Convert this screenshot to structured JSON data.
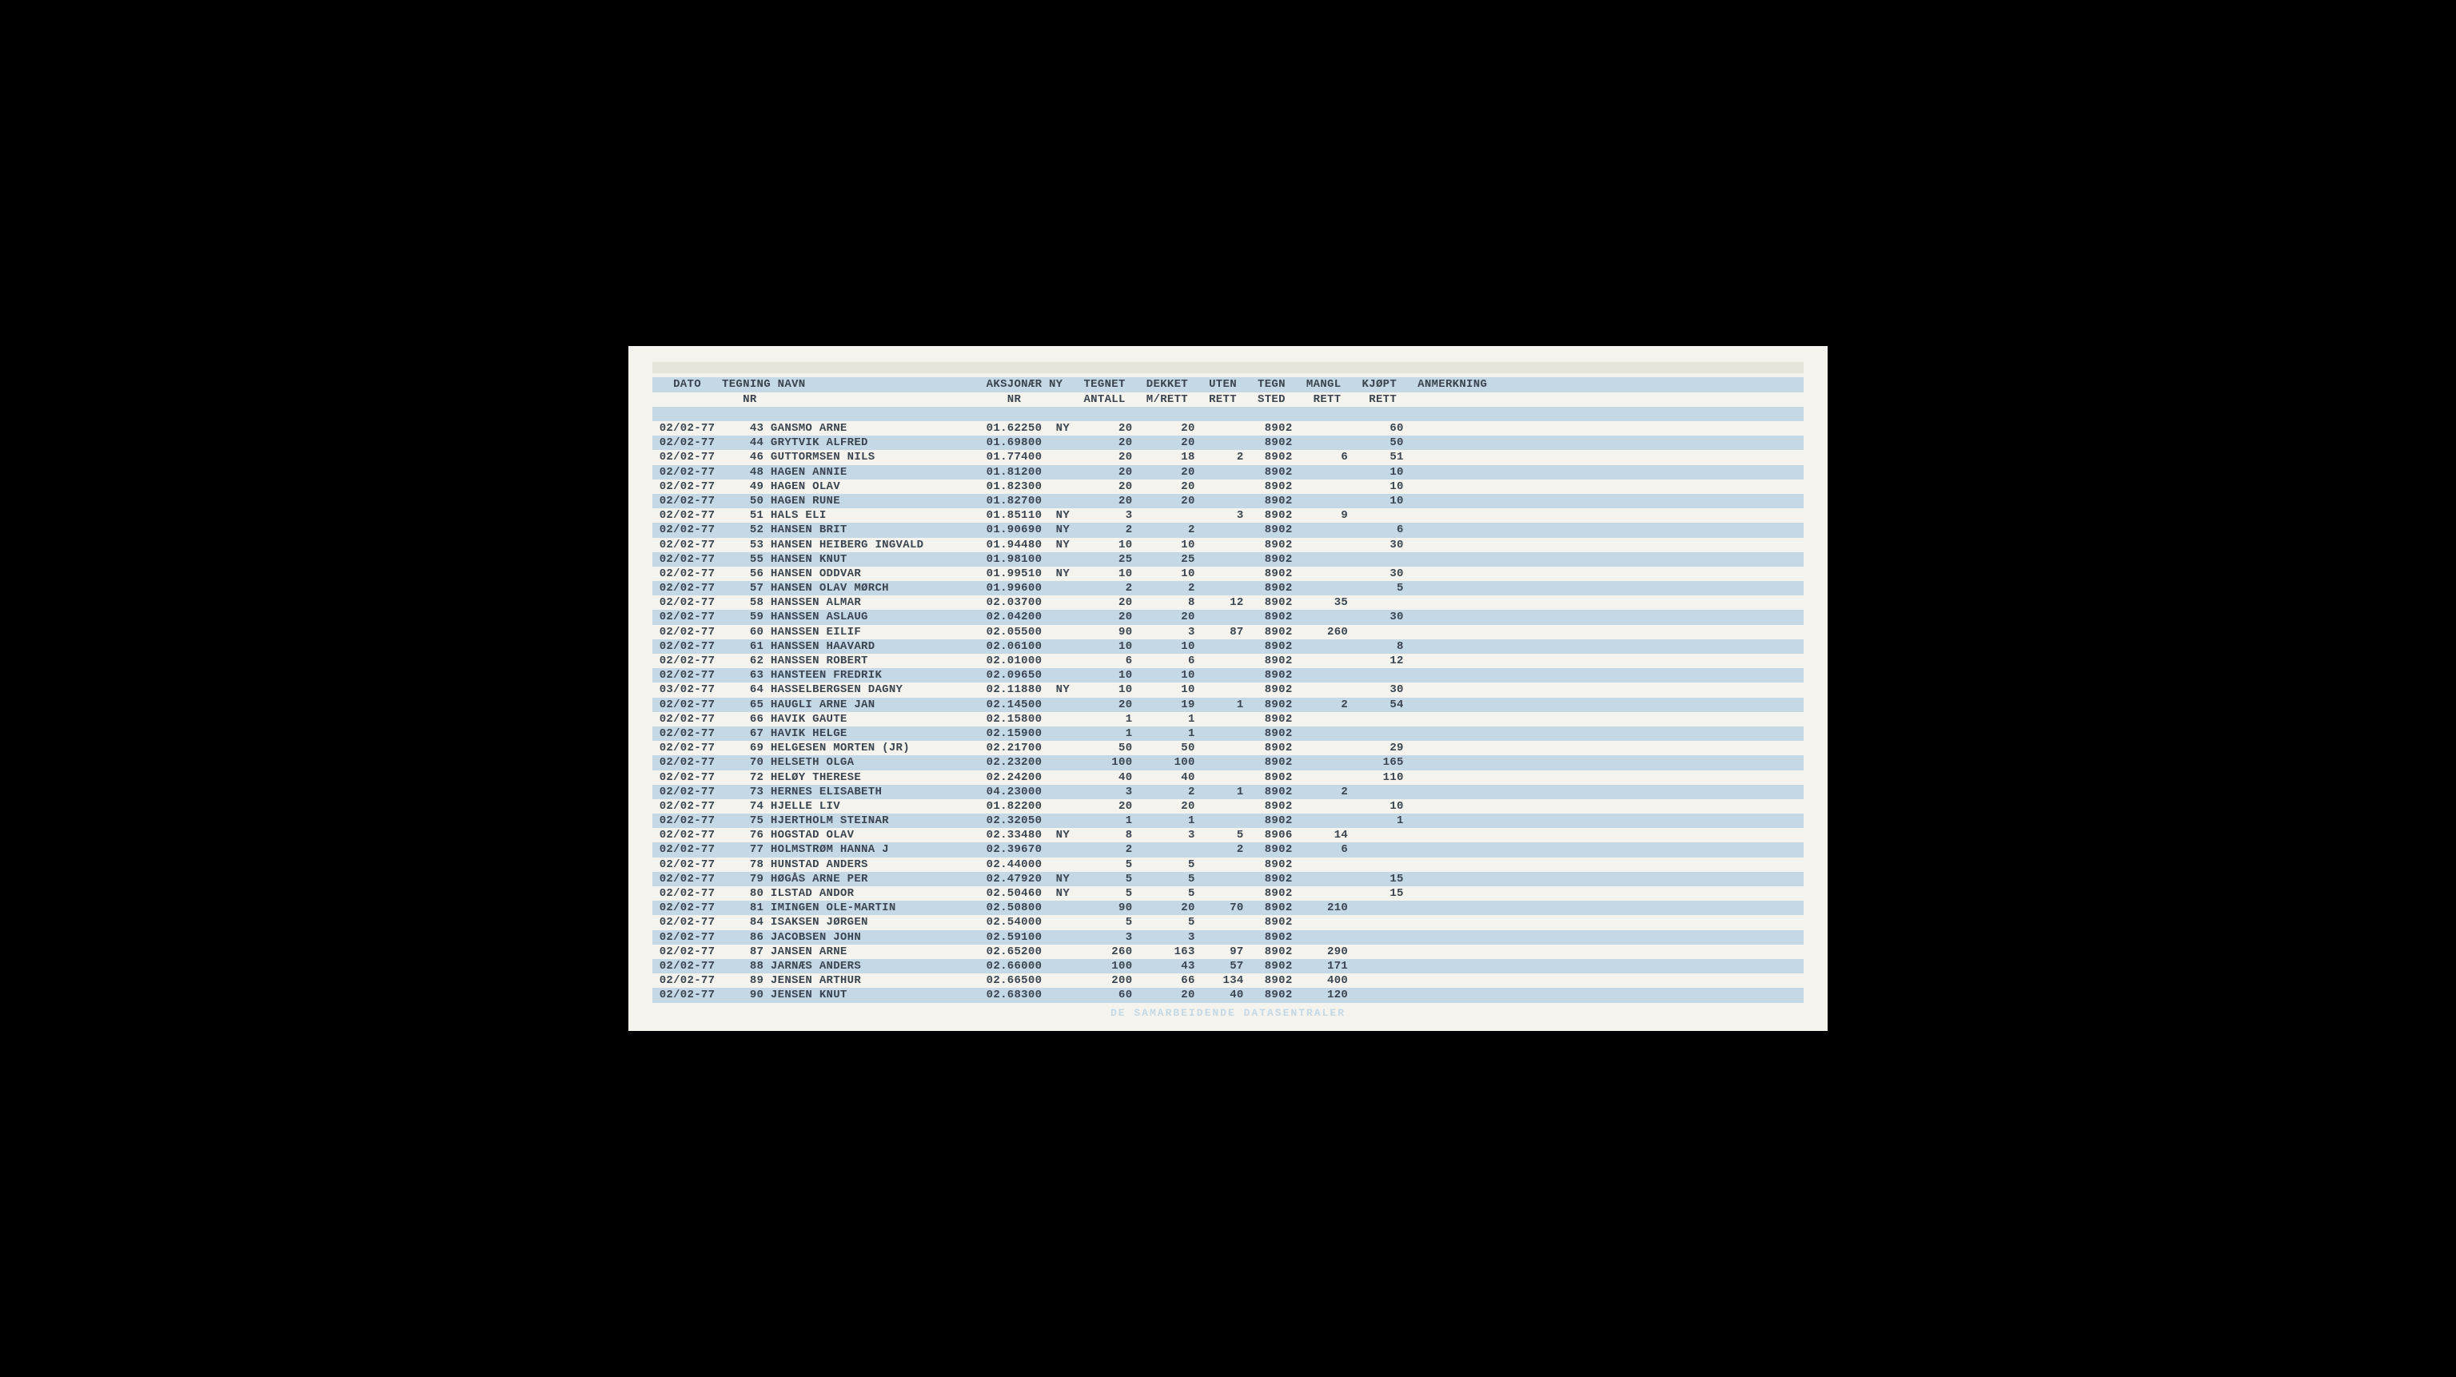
{
  "report": {
    "type": "table",
    "background_color": "#f5f3ed",
    "stripe_color": "#c5d8e5",
    "text_color": "#3a4550",
    "font_family": "Courier New",
    "font_size": 14,
    "line_height": 18.2,
    "header1": "   DATO   TEGNING NAVN                          AKSJONÆR NY   TEGNET   DEKKET   UTEN   TEGN   MANGL   KJØPT   ANMERKNING",
    "header2": "             NR                                    NR         ANTALL   M/RETT   RETT   STED    RETT    RETT",
    "footer": "DE SAMARBEIDENDE DATASENTRALER",
    "columns": [
      "DATO",
      "TEGNING NR",
      "NAVN",
      "AKSJONÆR NR",
      "NY",
      "TEGNET ANTALL",
      "DEKKET M/RETT",
      "UTEN RETT",
      "TEGN STED",
      "MANGL RETT",
      "KJØPT RETT",
      "ANMERKNING"
    ],
    "rows": [
      {
        "dato": "02/02-77",
        "nr": "43",
        "navn": "GANSMO ARNE",
        "aksj": "01.62250",
        "ny": "NY",
        "tegnet": "20",
        "dekket": "20",
        "uten": "",
        "sted": "8902",
        "mangl": "",
        "kjopt": "60"
      },
      {
        "dato": "02/02-77",
        "nr": "44",
        "navn": "GRYTVIK ALFRED",
        "aksj": "01.69800",
        "ny": "",
        "tegnet": "20",
        "dekket": "20",
        "uten": "",
        "sted": "8902",
        "mangl": "",
        "kjopt": "50"
      },
      {
        "dato": "02/02-77",
        "nr": "46",
        "navn": "GUTTORMSEN NILS",
        "aksj": "01.77400",
        "ny": "",
        "tegnet": "20",
        "dekket": "18",
        "uten": "2",
        "sted": "8902",
        "mangl": "6",
        "kjopt": "51"
      },
      {
        "dato": "02/02-77",
        "nr": "48",
        "navn": "HAGEN ANNIE",
        "aksj": "01.81200",
        "ny": "",
        "tegnet": "20",
        "dekket": "20",
        "uten": "",
        "sted": "8902",
        "mangl": "",
        "kjopt": "10"
      },
      {
        "dato": "02/02-77",
        "nr": "49",
        "navn": "HAGEN OLAV",
        "aksj": "01.82300",
        "ny": "",
        "tegnet": "20",
        "dekket": "20",
        "uten": "",
        "sted": "8902",
        "mangl": "",
        "kjopt": "10"
      },
      {
        "dato": "02/02-77",
        "nr": "50",
        "navn": "HAGEN RUNE",
        "aksj": "01.82700",
        "ny": "",
        "tegnet": "20",
        "dekket": "20",
        "uten": "",
        "sted": "8902",
        "mangl": "",
        "kjopt": "10"
      },
      {
        "dato": "02/02-77",
        "nr": "51",
        "navn": "HALS ELI",
        "aksj": "01.85110",
        "ny": "NY",
        "tegnet": "3",
        "dekket": "",
        "uten": "3",
        "sted": "8902",
        "mangl": "9",
        "kjopt": ""
      },
      {
        "dato": "02/02-77",
        "nr": "52",
        "navn": "HANSEN BRIT",
        "aksj": "01.90690",
        "ny": "NY",
        "tegnet": "2",
        "dekket": "2",
        "uten": "",
        "sted": "8902",
        "mangl": "",
        "kjopt": "6"
      },
      {
        "dato": "02/02-77",
        "nr": "53",
        "navn": "HANSEN HEIBERG INGVALD",
        "aksj": "01.94480",
        "ny": "NY",
        "tegnet": "10",
        "dekket": "10",
        "uten": "",
        "sted": "8902",
        "mangl": "",
        "kjopt": "30"
      },
      {
        "dato": "02/02-77",
        "nr": "55",
        "navn": "HANSEN KNUT",
        "aksj": "01.98100",
        "ny": "",
        "tegnet": "25",
        "dekket": "25",
        "uten": "",
        "sted": "8902",
        "mangl": "",
        "kjopt": ""
      },
      {
        "dato": "02/02-77",
        "nr": "56",
        "navn": "HANSEN ODDVAR",
        "aksj": "01.99510",
        "ny": "NY",
        "tegnet": "10",
        "dekket": "10",
        "uten": "",
        "sted": "8902",
        "mangl": "",
        "kjopt": "30"
      },
      {
        "dato": "02/02-77",
        "nr": "57",
        "navn": "HANSEN OLAV MØRCH",
        "aksj": "01.99600",
        "ny": "",
        "tegnet": "2",
        "dekket": "2",
        "uten": "",
        "sted": "8902",
        "mangl": "",
        "kjopt": "5"
      },
      {
        "dato": "02/02-77",
        "nr": "58",
        "navn": "HANSSEN ALMAR",
        "aksj": "02.03700",
        "ny": "",
        "tegnet": "20",
        "dekket": "8",
        "uten": "12",
        "sted": "8902",
        "mangl": "35",
        "kjopt": ""
      },
      {
        "dato": "02/02-77",
        "nr": "59",
        "navn": "HANSSEN ASLAUG",
        "aksj": "02.04200",
        "ny": "",
        "tegnet": "20",
        "dekket": "20",
        "uten": "",
        "sted": "8902",
        "mangl": "",
        "kjopt": "30"
      },
      {
        "dato": "02/02-77",
        "nr": "60",
        "navn": "HANSSEN EILIF",
        "aksj": "02.05500",
        "ny": "",
        "tegnet": "90",
        "dekket": "3",
        "uten": "87",
        "sted": "8902",
        "mangl": "260",
        "kjopt": ""
      },
      {
        "dato": "02/02-77",
        "nr": "61",
        "navn": "HANSSEN HAAVARD",
        "aksj": "02.06100",
        "ny": "",
        "tegnet": "10",
        "dekket": "10",
        "uten": "",
        "sted": "8902",
        "mangl": "",
        "kjopt": "8"
      },
      {
        "dato": "02/02-77",
        "nr": "62",
        "navn": "HANSSEN ROBERT",
        "aksj": "02.01000",
        "ny": "",
        "tegnet": "6",
        "dekket": "6",
        "uten": "",
        "sted": "8902",
        "mangl": "",
        "kjopt": "12"
      },
      {
        "dato": "02/02-77",
        "nr": "63",
        "navn": "HANSTEEN FREDRIK",
        "aksj": "02.09650",
        "ny": "",
        "tegnet": "10",
        "dekket": "10",
        "uten": "",
        "sted": "8902",
        "mangl": "",
        "kjopt": ""
      },
      {
        "dato": "03/02-77",
        "nr": "64",
        "navn": "HASSELBERGSEN DAGNY",
        "aksj": "02.11880",
        "ny": "NY",
        "tegnet": "10",
        "dekket": "10",
        "uten": "",
        "sted": "8902",
        "mangl": "",
        "kjopt": "30"
      },
      {
        "dato": "02/02-77",
        "nr": "65",
        "navn": "HAUGLI ARNE JAN",
        "aksj": "02.14500",
        "ny": "",
        "tegnet": "20",
        "dekket": "19",
        "uten": "1",
        "sted": "8902",
        "mangl": "2",
        "kjopt": "54"
      },
      {
        "dato": "02/02-77",
        "nr": "66",
        "navn": "HAVIK GAUTE",
        "aksj": "02.15800",
        "ny": "",
        "tegnet": "1",
        "dekket": "1",
        "uten": "",
        "sted": "8902",
        "mangl": "",
        "kjopt": ""
      },
      {
        "dato": "02/02-77",
        "nr": "67",
        "navn": "HAVIK HELGE",
        "aksj": "02.15900",
        "ny": "",
        "tegnet": "1",
        "dekket": "1",
        "uten": "",
        "sted": "8902",
        "mangl": "",
        "kjopt": ""
      },
      {
        "dato": "02/02-77",
        "nr": "69",
        "navn": "HELGESEN MORTEN (JR)",
        "aksj": "02.21700",
        "ny": "",
        "tegnet": "50",
        "dekket": "50",
        "uten": "",
        "sted": "8902",
        "mangl": "",
        "kjopt": "29"
      },
      {
        "dato": "02/02-77",
        "nr": "70",
        "navn": "HELSETH OLGA",
        "aksj": "02.23200",
        "ny": "",
        "tegnet": "100",
        "dekket": "100",
        "uten": "",
        "sted": "8902",
        "mangl": "",
        "kjopt": "165"
      },
      {
        "dato": "02/02-77",
        "nr": "72",
        "navn": "HELØY THERESE",
        "aksj": "02.24200",
        "ny": "",
        "tegnet": "40",
        "dekket": "40",
        "uten": "",
        "sted": "8902",
        "mangl": "",
        "kjopt": "110"
      },
      {
        "dato": "02/02-77",
        "nr": "73",
        "navn": "HERNES ELISABETH",
        "aksj": "04.23000",
        "ny": "",
        "tegnet": "3",
        "dekket": "2",
        "uten": "1",
        "sted": "8902",
        "mangl": "2",
        "kjopt": ""
      },
      {
        "dato": "02/02-77",
        "nr": "74",
        "navn": "HJELLE LIV",
        "aksj": "01.82200",
        "ny": "",
        "tegnet": "20",
        "dekket": "20",
        "uten": "",
        "sted": "8902",
        "mangl": "",
        "kjopt": "10"
      },
      {
        "dato": "02/02-77",
        "nr": "75",
        "navn": "HJERTHOLM STEINAR",
        "aksj": "02.32050",
        "ny": "",
        "tegnet": "1",
        "dekket": "1",
        "uten": "",
        "sted": "8902",
        "mangl": "",
        "kjopt": "1"
      },
      {
        "dato": "02/02-77",
        "nr": "76",
        "navn": "HOGSTAD OLAV",
        "aksj": "02.33480",
        "ny": "NY",
        "tegnet": "8",
        "dekket": "3",
        "uten": "5",
        "sted": "8906",
        "mangl": "14",
        "kjopt": ""
      },
      {
        "dato": "02/02-77",
        "nr": "77",
        "navn": "HOLMSTRØM HANNA J",
        "aksj": "02.39670",
        "ny": "",
        "tegnet": "2",
        "dekket": "",
        "uten": "2",
        "sted": "8902",
        "mangl": "6",
        "kjopt": ""
      },
      {
        "dato": "02/02-77",
        "nr": "78",
        "navn": "HUNSTAD ANDERS",
        "aksj": "02.44000",
        "ny": "",
        "tegnet": "5",
        "dekket": "5",
        "uten": "",
        "sted": "8902",
        "mangl": "",
        "kjopt": ""
      },
      {
        "dato": "02/02-77",
        "nr": "79",
        "navn": "HØGÅS ARNE PER",
        "aksj": "02.47920",
        "ny": "NY",
        "tegnet": "5",
        "dekket": "5",
        "uten": "",
        "sted": "8902",
        "mangl": "",
        "kjopt": "15"
      },
      {
        "dato": "02/02-77",
        "nr": "80",
        "navn": "ILSTAD ANDOR",
        "aksj": "02.50460",
        "ny": "NY",
        "tegnet": "5",
        "dekket": "5",
        "uten": "",
        "sted": "8902",
        "mangl": "",
        "kjopt": "15"
      },
      {
        "dato": "02/02-77",
        "nr": "81",
        "navn": "IMINGEN OLE-MARTIN",
        "aksj": "02.50800",
        "ny": "",
        "tegnet": "90",
        "dekket": "20",
        "uten": "70",
        "sted": "8902",
        "mangl": "210",
        "kjopt": ""
      },
      {
        "dato": "02/02-77",
        "nr": "84",
        "navn": "ISAKSEN JØRGEN",
        "aksj": "02.54000",
        "ny": "",
        "tegnet": "5",
        "dekket": "5",
        "uten": "",
        "sted": "8902",
        "mangl": "",
        "kjopt": ""
      },
      {
        "dato": "02/02-77",
        "nr": "86",
        "navn": "JACOBSEN JOHN",
        "aksj": "02.59100",
        "ny": "",
        "tegnet": "3",
        "dekket": "3",
        "uten": "",
        "sted": "8902",
        "mangl": "",
        "kjopt": ""
      },
      {
        "dato": "02/02-77",
        "nr": "87",
        "navn": "JANSEN ARNE",
        "aksj": "02.65200",
        "ny": "",
        "tegnet": "260",
        "dekket": "163",
        "uten": "97",
        "sted": "8902",
        "mangl": "290",
        "kjopt": ""
      },
      {
        "dato": "02/02-77",
        "nr": "88",
        "navn": "JARNÆS ANDERS",
        "aksj": "02.66000",
        "ny": "",
        "tegnet": "100",
        "dekket": "43",
        "uten": "57",
        "sted": "8902",
        "mangl": "171",
        "kjopt": ""
      },
      {
        "dato": "02/02-77",
        "nr": "89",
        "navn": "JENSEN ARTHUR",
        "aksj": "02.66500",
        "ny": "",
        "tegnet": "200",
        "dekket": "66",
        "uten": "134",
        "sted": "8902",
        "mangl": "400",
        "kjopt": ""
      },
      {
        "dato": "02/02-77",
        "nr": "90",
        "navn": "JENSEN KNUT",
        "aksj": "02.68300",
        "ny": "",
        "tegnet": "60",
        "dekket": "20",
        "uten": "40",
        "sted": "8902",
        "mangl": "120",
        "kjopt": ""
      }
    ]
  }
}
